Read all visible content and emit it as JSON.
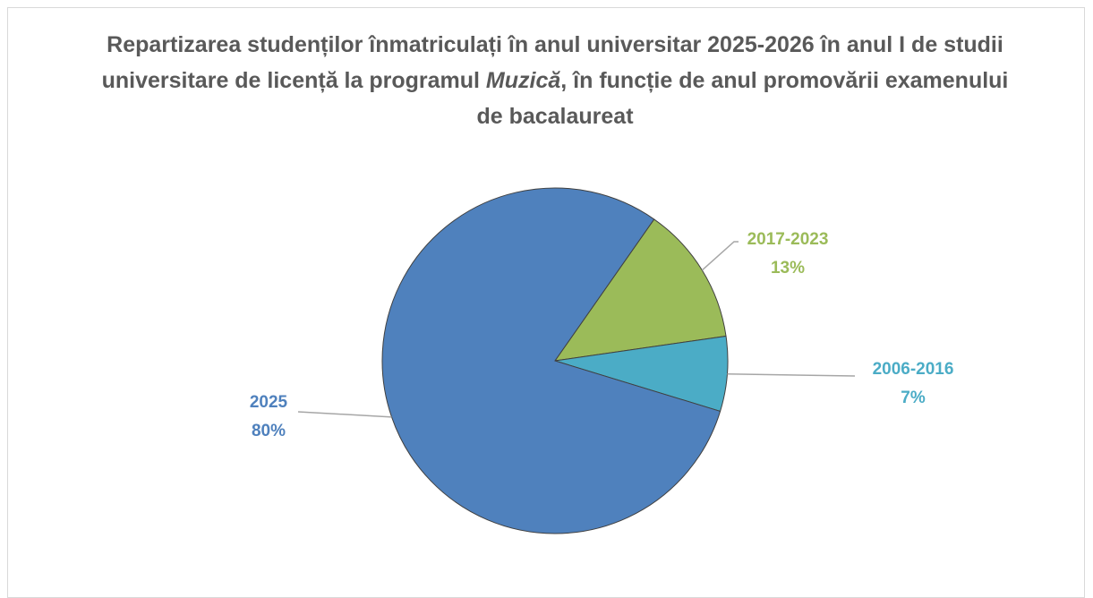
{
  "chart_data": {
    "type": "pie",
    "title": [
      "Repartizarea studenților înmatriculați în anul universitar 2025-2026 în anul I de studii universitare de licență la programul ",
      "Muzică",
      ", în funcție de anul promovării examenului de bacalaureat"
    ],
    "categories": [
      "2017-2023",
      "2006-2016",
      "2025"
    ],
    "values": [
      13,
      7,
      80
    ],
    "value_labels": [
      "13%",
      "7%",
      "80%"
    ],
    "colors": [
      "#9bbb59",
      "#4bacc6",
      "#4f81bd"
    ],
    "start_angle": 35
  }
}
